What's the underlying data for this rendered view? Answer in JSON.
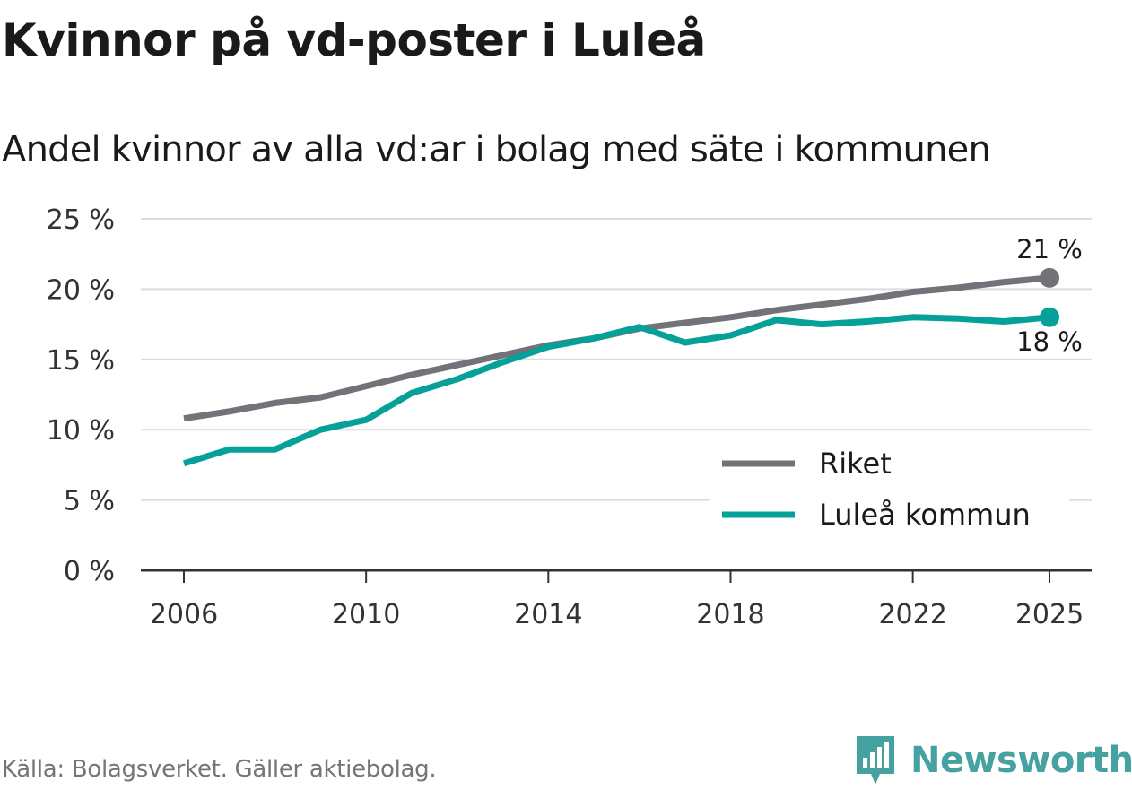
{
  "title": "Kvinnor på vd-poster i Luleå",
  "subtitle": "Andel kvinnor av alla vd:ar i bolag med säte i kommunen",
  "source": "Källa: Bolagsverket. Gäller aktiebolag.",
  "brand": "Newsworthy",
  "chart_data": {
    "type": "line",
    "title": "Kvinnor på vd-poster i Luleå",
    "subtitle": "Andel kvinnor av alla vd:ar i bolag med säte i kommunen",
    "xlabel": "",
    "ylabel": "",
    "x": [
      2006,
      2007,
      2008,
      2009,
      2010,
      2011,
      2012,
      2013,
      2014,
      2015,
      2016,
      2017,
      2018,
      2019,
      2020,
      2021,
      2022,
      2023,
      2024,
      2025
    ],
    "xticks": [
      2006,
      2010,
      2014,
      2018,
      2022,
      2025
    ],
    "xtick_labels": [
      "2006",
      "2010",
      "2014",
      "2018",
      "2022",
      "2025"
    ],
    "ylim": [
      0,
      25
    ],
    "yticks": [
      0,
      5,
      10,
      15,
      20,
      25
    ],
    "ytick_labels": [
      "0 %",
      "5 %",
      "10 %",
      "15 %",
      "20 %",
      "25 %"
    ],
    "grid": true,
    "legend_position": "bottom-right",
    "series": [
      {
        "name": "Riket",
        "color": "#737278",
        "values": [
          10.8,
          11.3,
          11.9,
          12.3,
          13.1,
          13.9,
          14.6,
          15.3,
          16.0,
          16.5,
          17.2,
          17.6,
          18.0,
          18.5,
          18.9,
          19.3,
          19.8,
          20.1,
          20.5,
          20.8
        ],
        "end_label": "21 %"
      },
      {
        "name": "Luleå kommun",
        "color": "#05a198",
        "values": [
          7.6,
          8.6,
          8.6,
          10.0,
          10.7,
          12.6,
          13.6,
          14.8,
          15.9,
          16.5,
          17.3,
          16.2,
          16.7,
          17.8,
          17.5,
          17.7,
          18.0,
          17.9,
          17.7,
          18.0
        ],
        "end_label": "18 %"
      }
    ]
  }
}
